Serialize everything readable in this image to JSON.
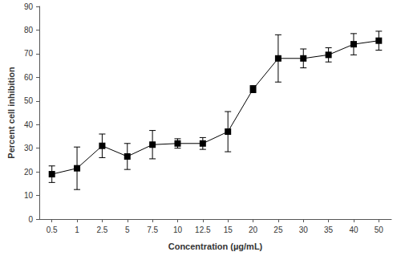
{
  "chart_data": {
    "type": "line",
    "x_label": "Concentration (µg/mL)",
    "y_label": "Percent cell inhibition",
    "categories": [
      "0.5",
      "1",
      "2.5",
      "5",
      "7.5",
      "10",
      "12.5",
      "15",
      "20",
      "25",
      "30",
      "35",
      "40",
      "50"
    ],
    "values": [
      19,
      21.5,
      31,
      26.5,
      31.5,
      32,
      32,
      37,
      55,
      68,
      68,
      69.5,
      74,
      75.5
    ],
    "errors": [
      3.5,
      9,
      5,
      5.5,
      6,
      2,
      2.5,
      8.5,
      1.5,
      10,
      4,
      3,
      4.5,
      4
    ],
    "color": "#000000",
    "marker": "square",
    "ylim": [
      0,
      90
    ],
    "yticks": [
      0,
      10,
      20,
      30,
      40,
      50,
      60,
      70,
      80,
      90
    ],
    "grid": false
  }
}
